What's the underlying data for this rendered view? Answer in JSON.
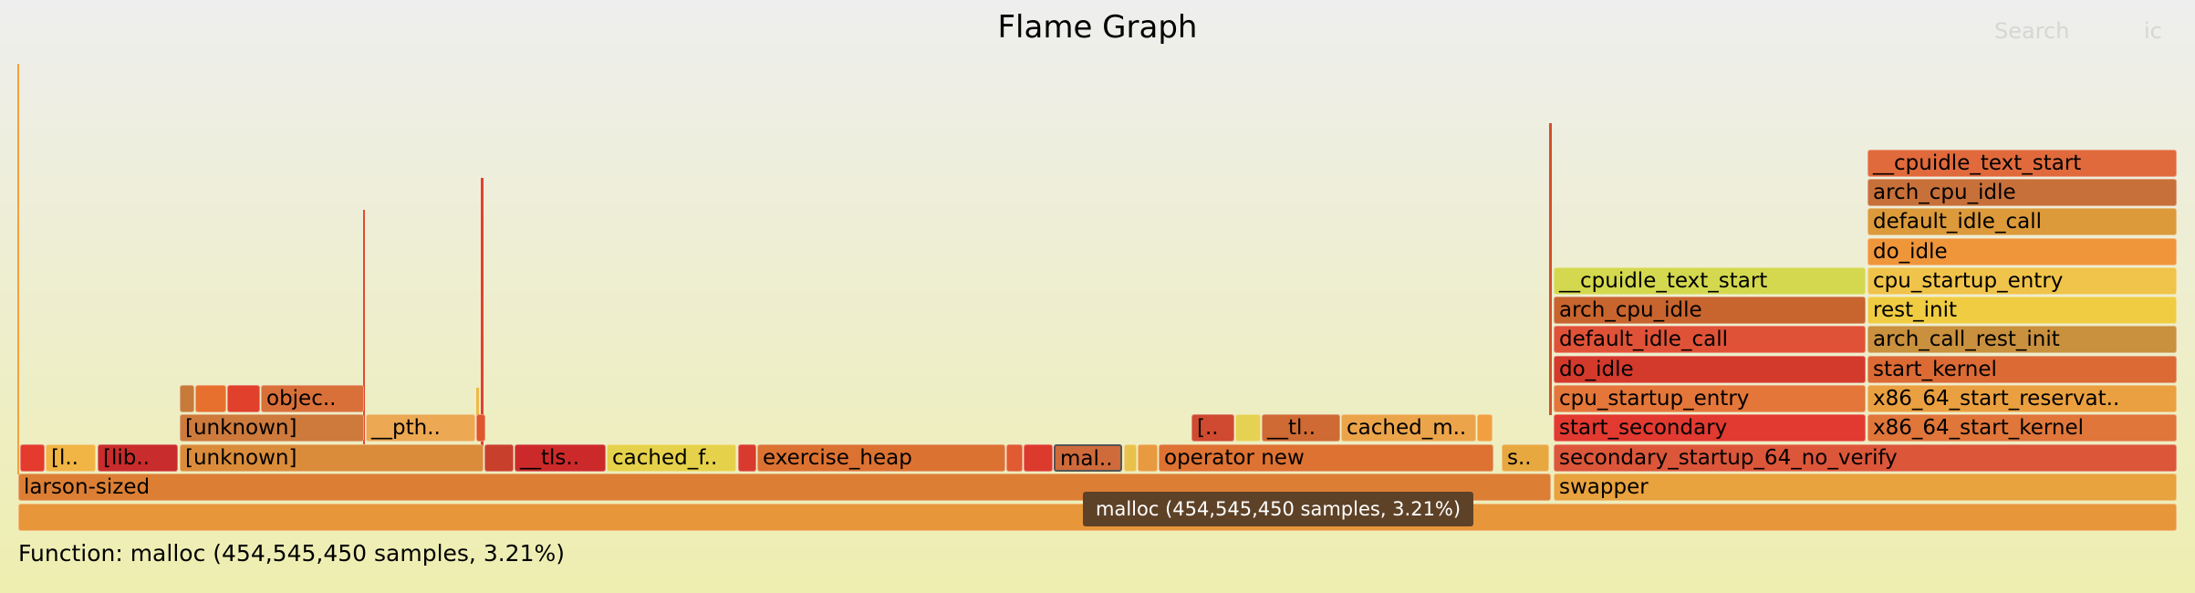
{
  "header": {
    "title": "Flame Graph",
    "search_label": "Search",
    "ic_label": "ic"
  },
  "tooltip": "malloc (454,545,450 samples, 3.21%)",
  "details": "Function: malloc (454,545,450 samples, 3.21%)",
  "frames": [
    {
      "label": "",
      "color": "#e8963a"
    },
    {
      "label": "larson-sized",
      "color": "#dc7f34"
    },
    {
      "label": "swapper",
      "color": "#e8a23e"
    },
    {
      "label": "",
      "color": "#e43b2e"
    },
    {
      "label": "[l..",
      "color": "#f0b544"
    },
    {
      "label": "[lib..",
      "color": "#c92c2c"
    },
    {
      "label": "[unknown]",
      "color": "#da8c3a"
    },
    {
      "label": "",
      "color": "#c8402c"
    },
    {
      "label": "__tls..",
      "color": "#cc2a2a"
    },
    {
      "label": "cached_f..",
      "color": "#e6d24a"
    },
    {
      "label": "",
      "color": "#d93a2e"
    },
    {
      "label": "exercise_heap",
      "color": "#dc7232"
    },
    {
      "label": "",
      "color": "#e05a32"
    },
    {
      "label": "",
      "color": "#dd3a2e"
    },
    {
      "label": "mal..",
      "color": "#cf6a3a"
    },
    {
      "label": "",
      "color": "#e8c24c"
    },
    {
      "label": "",
      "color": "#e89a40"
    },
    {
      "label": "operator new",
      "color": "#dd7232"
    },
    {
      "label": "s..",
      "color": "#e8a840"
    },
    {
      "label": "secondary_startup_64_no_verify",
      "color": "#dc563a"
    },
    {
      "label": "[unknown]",
      "color": "#cd7a3c"
    },
    {
      "label": "__pth..",
      "color": "#eca852"
    },
    {
      "label": "",
      "color": "#e0562e"
    },
    {
      "label": "[..",
      "color": "#cf4a30"
    },
    {
      "label": "",
      "color": "#e6d252"
    },
    {
      "label": "__tl..",
      "color": "#cf6a34"
    },
    {
      "label": "cached_m..",
      "color": "#eca44a"
    },
    {
      "label": "",
      "color": "#f0a040"
    },
    {
      "label": "start_secondary",
      "color": "#e23a30"
    },
    {
      "label": "x86_64_start_kernel",
      "color": "#e0763a"
    },
    {
      "label": "",
      "color": "#c87a3a"
    },
    {
      "label": "",
      "color": "#e8702e"
    },
    {
      "label": "",
      "color": "#e0402c"
    },
    {
      "label": "objec..",
      "color": "#d9703a"
    },
    {
      "label": "cpu_startup_entry",
      "color": "#e4763a"
    },
    {
      "label": "x86_64_start_reservat..",
      "color": "#eaa040"
    },
    {
      "label": "do_idle",
      "color": "#d43a2c"
    },
    {
      "label": "start_kernel",
      "color": "#db6a34"
    },
    {
      "label": "default_idle_call",
      "color": "#e05238"
    },
    {
      "label": "arch_call_rest_init",
      "color": "#c9903e"
    },
    {
      "label": "arch_cpu_idle",
      "color": "#c8642e"
    },
    {
      "label": "rest_init",
      "color": "#f0cc42"
    },
    {
      "label": "__cpuidle_text_start",
      "color": "#d4d84e"
    },
    {
      "label": "cpu_startup_entry",
      "color": "#f0c44a"
    },
    {
      "label": "do_idle",
      "color": "#f0963a"
    },
    {
      "label": "default_idle_call",
      "color": "#dc9a3a"
    },
    {
      "label": "arch_cpu_idle",
      "color": "#c8703a"
    },
    {
      "label": "__cpuidle_text_start",
      "color": "#e06a3c"
    }
  ]
}
